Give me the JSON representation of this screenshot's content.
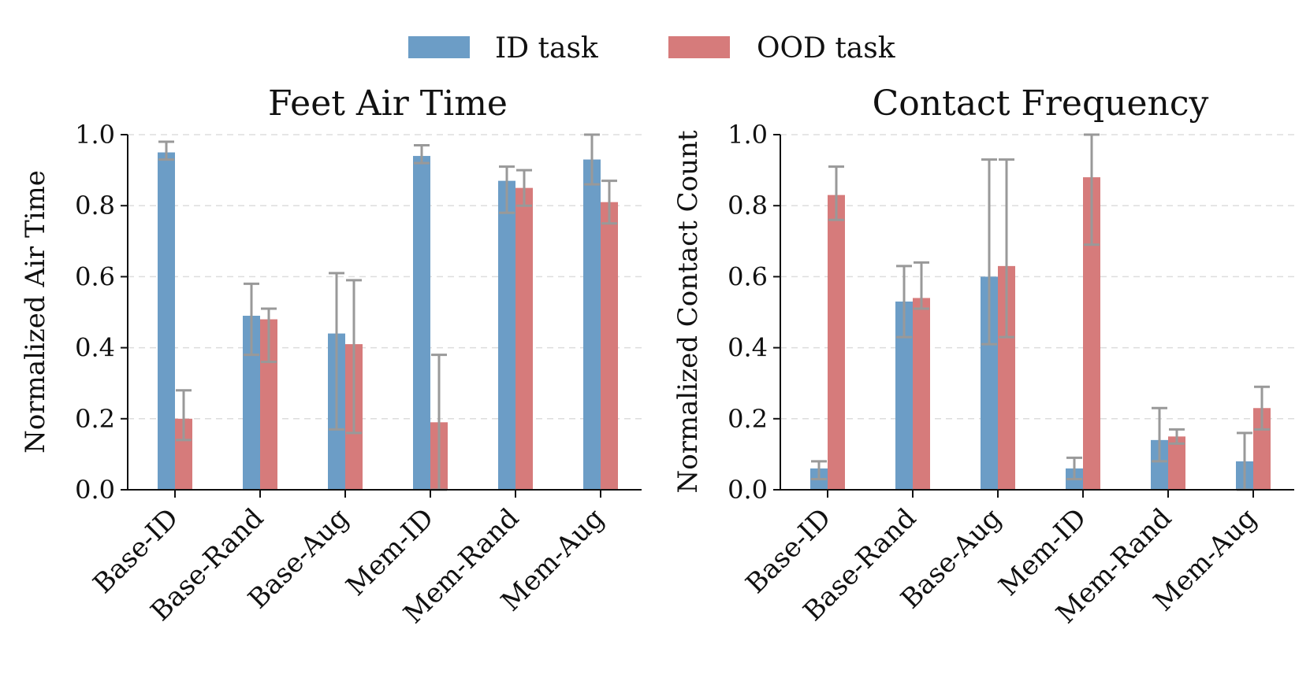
{
  "legend": {
    "items": [
      {
        "label": "ID task",
        "color": "#6c9dc6"
      },
      {
        "label": "OOD task",
        "color": "#d67b7b"
      }
    ],
    "placement": "top-center"
  },
  "colors": {
    "id": "#6c9dc6",
    "ood": "#d67b7b",
    "error": "#999999",
    "grid": "#dddddd"
  },
  "chart_data": [
    {
      "type": "bar",
      "title": "Feet Air Time",
      "xlabel": "",
      "ylabel": "Normalized Air Time",
      "ylim": [
        0,
        1.0
      ],
      "yticks": [
        "0.0",
        "0.2",
        "0.4",
        "0.6",
        "0.8",
        "1.0"
      ],
      "grid": "y-dashed",
      "categories": [
        "Base-ID",
        "Base-Rand",
        "Base-Aug",
        "Mem-ID",
        "Mem-Rand",
        "Mem-Aug"
      ],
      "series": [
        {
          "name": "ID task",
          "values": [
            0.95,
            0.49,
            0.44,
            0.94,
            0.87,
            0.93
          ],
          "err_low": [
            0.93,
            0.38,
            0.17,
            0.92,
            0.78,
            0.86
          ],
          "err_high": [
            0.98,
            0.58,
            0.61,
            0.97,
            0.91,
            1.0
          ]
        },
        {
          "name": "OOD task",
          "values": [
            0.2,
            0.48,
            0.41,
            0.19,
            0.85,
            0.81
          ],
          "err_low": [
            0.14,
            0.36,
            0.16,
            0.0,
            0.8,
            0.75
          ],
          "err_high": [
            0.28,
            0.51,
            0.59,
            0.38,
            0.9,
            0.87
          ]
        }
      ]
    },
    {
      "type": "bar",
      "title": "Contact Frequency",
      "xlabel": "",
      "ylabel": "Normalized Contact Count",
      "ylim": [
        0,
        1.0
      ],
      "yticks": [
        "0.0",
        "0.2",
        "0.4",
        "0.6",
        "0.8",
        "1.0"
      ],
      "grid": "y-dashed",
      "categories": [
        "Base-ID",
        "Base-Rand",
        "Base-Aug",
        "Mem-ID",
        "Mem-Rand",
        "Mem-Aug"
      ],
      "series": [
        {
          "name": "ID task",
          "values": [
            0.06,
            0.53,
            0.6,
            0.06,
            0.14,
            0.08
          ],
          "err_low": [
            0.03,
            0.43,
            0.41,
            0.03,
            0.08,
            0.0
          ],
          "err_high": [
            0.08,
            0.63,
            0.93,
            0.09,
            0.23,
            0.16
          ]
        },
        {
          "name": "OOD task",
          "values": [
            0.83,
            0.54,
            0.63,
            0.88,
            0.15,
            0.23
          ],
          "err_low": [
            0.76,
            0.51,
            0.43,
            0.69,
            0.13,
            0.17
          ],
          "err_high": [
            0.91,
            0.64,
            0.93,
            1.0,
            0.17,
            0.29
          ]
        }
      ]
    }
  ]
}
